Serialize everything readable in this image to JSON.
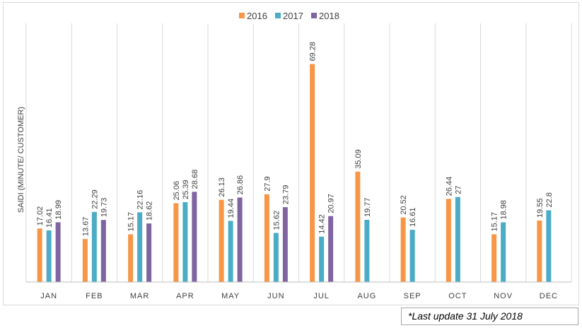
{
  "chart_data": {
    "type": "bar",
    "title": "",
    "xlabel": "",
    "ylabel": "SAIDI (MINUTE/ CUSTOMER)",
    "ylim": [
      0,
      73
    ],
    "grid": "vertical separators between categories",
    "legend_position": "top",
    "categories": [
      "JAN",
      "FEB",
      "MAR",
      "APR",
      "MAY",
      "JUN",
      "JUL",
      "AUG",
      "SEP",
      "OCT",
      "NOV",
      "DEC"
    ],
    "series": [
      {
        "name": "2016",
        "color": "#f79646",
        "values": [
          17.02,
          13.67,
          15.17,
          25.06,
          26.13,
          27.9,
          69.28,
          35.09,
          20.52,
          26.44,
          15.17,
          19.55
        ],
        "labels": [
          "17.02",
          "13.67",
          "15.17",
          "25.06",
          "26.13",
          "27.9",
          "69.28",
          "35.09",
          "20.52",
          "26.44",
          "15.17",
          "19.55"
        ]
      },
      {
        "name": "2017",
        "color": "#4bacc6",
        "values": [
          16.41,
          22.29,
          22.16,
          25.39,
          19.44,
          15.62,
          14.42,
          19.77,
          16.61,
          27,
          18.98,
          22.8
        ],
        "labels": [
          "16.41",
          "22.29",
          "22.16",
          "25.39",
          "19.44",
          "15.62",
          "14.42",
          "19.77",
          "16.61",
          "27",
          "18.98",
          "22.8"
        ]
      },
      {
        "name": "2018",
        "color": "#8064a2",
        "values": [
          18.99,
          19.73,
          18.62,
          28.68,
          26.86,
          23.79,
          20.97,
          null,
          null,
          null,
          null,
          null
        ],
        "labels": [
          "18.99",
          "19.73",
          "18.62",
          "28.68",
          "26.86",
          "23.79",
          "20.97",
          null,
          null,
          null,
          null,
          null
        ]
      }
    ]
  },
  "footnote": "*Last update 31 July 2018"
}
